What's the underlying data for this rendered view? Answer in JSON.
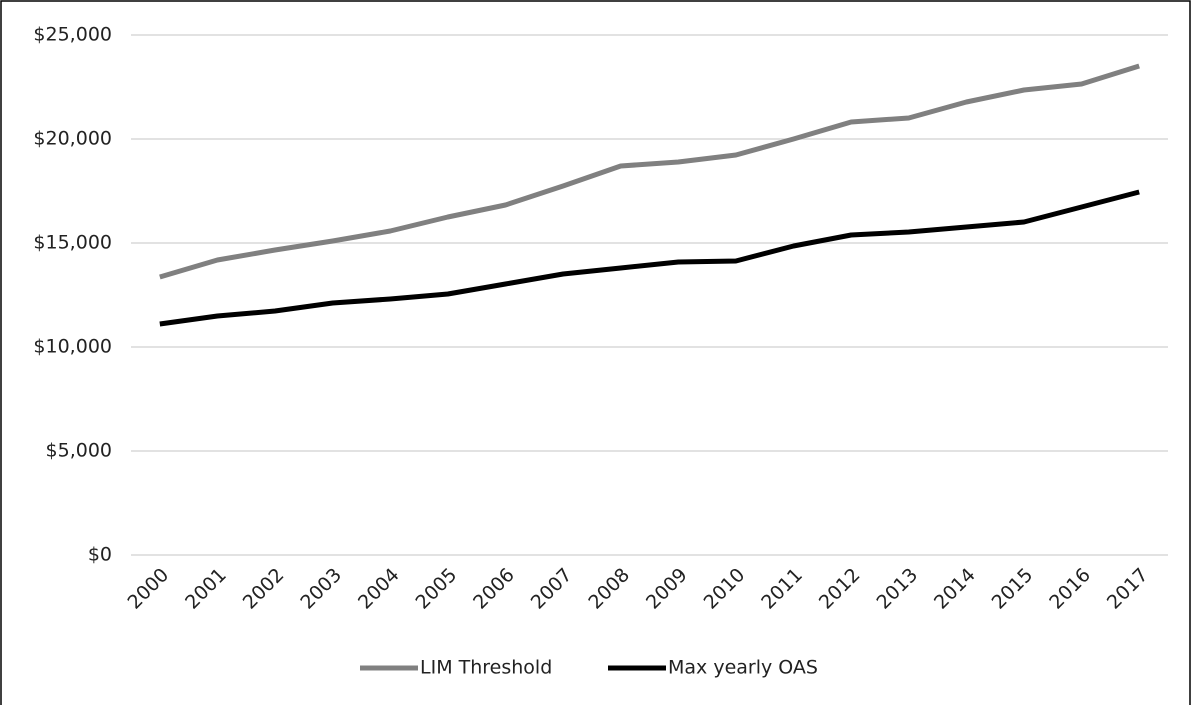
{
  "chart_data": {
    "type": "line",
    "categories": [
      "2000",
      "2001",
      "2002",
      "2003",
      "2004",
      "2005",
      "2006",
      "2007",
      "2008",
      "2009",
      "2010",
      "2011",
      "2012",
      "2013",
      "2014",
      "2015",
      "2016",
      "2017"
    ],
    "series": [
      {
        "name": "LIM Threshold",
        "color": "#808080",
        "values": [
          13365,
          14183,
          14663,
          15096,
          15577,
          16250,
          16827,
          17740,
          18702,
          18894,
          19231,
          20000,
          20817,
          21010,
          21779,
          22356,
          22644,
          23510
        ]
      },
      {
        "name": "Max yearly OAS",
        "color": "#000000",
        "values": [
          11106,
          11490,
          11731,
          12115,
          12308,
          12548,
          13029,
          13510,
          13798,
          14087,
          14135,
          14856,
          15385,
          15529,
          15769,
          16010,
          16731,
          17452
        ]
      }
    ],
    "ylim": [
      0,
      25000
    ],
    "yticks": [
      {
        "value": 0,
        "label": "$0"
      },
      {
        "value": 5000,
        "label": "$5,000"
      },
      {
        "value": 10000,
        "label": "$10,000"
      },
      {
        "value": 15000,
        "label": "$15,000"
      },
      {
        "value": 20000,
        "label": "$20,000"
      },
      {
        "value": 25000,
        "label": "$25,000"
      }
    ],
    "grid": true,
    "legend": "bottom"
  }
}
